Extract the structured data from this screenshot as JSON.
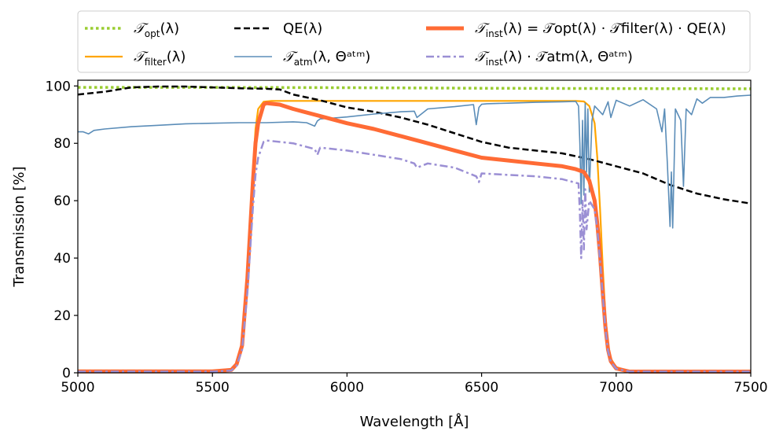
{
  "chart_data": {
    "type": "line",
    "title": "",
    "xlabel": "Wavelength [Å]",
    "ylabel": "Transmission [%]",
    "xlim": [
      5000,
      7500
    ],
    "ylim": [
      0,
      102
    ],
    "xticks": [
      5000,
      5500,
      6000,
      6500,
      7000,
      7500
    ],
    "yticks": [
      0,
      20,
      40,
      60,
      80,
      100
    ],
    "xtick_labels": [
      "5000",
      "5500",
      "6000",
      "6500",
      "7000",
      "7500"
    ],
    "ytick_labels": [
      "0",
      "20",
      "40",
      "60",
      "80",
      "100"
    ],
    "grid": false,
    "legend": {
      "location": "top, outside plot",
      "columns": 3
    },
    "series": [
      {
        "name": "T_opt(λ)",
        "legend_main": "𝒯",
        "legend_sub": "opt",
        "legend_tail": "(λ)",
        "color": "#9acd32",
        "style": "dotted",
        "x": [
          5000,
          5500,
          6000,
          6500,
          7000,
          7500
        ],
        "y": [
          99.5,
          99.5,
          99.4,
          99.2,
          99.1,
          99.0
        ]
      },
      {
        "name": "T_filter(λ)",
        "legend_main": "𝒯",
        "legend_sub": "filter",
        "legend_tail": "(λ)",
        "color": "#ffa500",
        "style": "solid",
        "x": [
          5000,
          5500,
          5570,
          5590,
          5610,
          5630,
          5650,
          5660,
          5670,
          5690,
          5720,
          5800,
          6000,
          6500,
          6850,
          6880,
          6900,
          6920,
          6930,
          6940,
          6950,
          6960,
          6970,
          6980,
          7000,
          7050,
          7500
        ],
        "y": [
          0.5,
          0.5,
          1.0,
          3.0,
          10.0,
          35.0,
          70.0,
          85.0,
          92.0,
          94.5,
          94.8,
          94.8,
          94.8,
          94.8,
          94.8,
          94.6,
          93.0,
          87.0,
          75.0,
          57.0,
          37.0,
          20.0,
          10.0,
          5.0,
          2.0,
          0.5,
          0.5
        ]
      },
      {
        "name": "QE(λ)",
        "legend_main": "QE",
        "legend_sub": "",
        "legend_tail": "(λ)",
        "color": "#000000",
        "style": "dashed",
        "x": [
          5000,
          5100,
          5200,
          5300,
          5400,
          5500,
          5600,
          5700,
          5750,
          5800,
          5900,
          6000,
          6100,
          6200,
          6300,
          6400,
          6500,
          6600,
          6700,
          6800,
          6900,
          7000,
          7100,
          7200,
          7300,
          7400,
          7500
        ],
        "y": [
          97.0,
          98.0,
          99.5,
          99.8,
          99.8,
          99.5,
          99.2,
          99.0,
          98.8,
          97.0,
          95.0,
          92.5,
          91.0,
          89.0,
          86.5,
          83.5,
          80.5,
          78.5,
          77.5,
          76.5,
          74.5,
          72.0,
          69.5,
          65.5,
          62.5,
          60.5,
          59.0
        ]
      },
      {
        "name": "T_atm(λ, Θ^atm)",
        "legend_main": "𝒯",
        "legend_sub": "atm",
        "legend_tail": "(λ, Θᵃᵗᵐ)",
        "color": "#5b8db8",
        "style": "solid",
        "x": [
          5000,
          5020,
          5040,
          5060,
          5100,
          5200,
          5300,
          5400,
          5500,
          5600,
          5700,
          5800,
          5850,
          5880,
          5890,
          5900,
          5950,
          6000,
          6100,
          6200,
          6250,
          6260,
          6300,
          6400,
          6470,
          6480,
          6490,
          6500,
          6520,
          6600,
          6700,
          6800,
          6850,
          6860,
          6865,
          6870,
          6875,
          6880,
          6885,
          6890,
          6895,
          6900,
          6910,
          6920,
          6950,
          6970,
          6980,
          7000,
          7050,
          7100,
          7150,
          7170,
          7180,
          7190,
          7200,
          7205,
          7210,
          7220,
          7240,
          7250,
          7260,
          7280,
          7300,
          7320,
          7350,
          7400,
          7450,
          7500
        ],
        "y": [
          84.0,
          84.0,
          83.3,
          84.5,
          85.0,
          85.8,
          86.3,
          86.8,
          87.0,
          87.2,
          87.2,
          87.5,
          87.2,
          86.0,
          87.8,
          88.5,
          88.8,
          89.2,
          90.2,
          91.0,
          91.2,
          89.0,
          92.0,
          92.8,
          93.5,
          86.5,
          92.5,
          93.6,
          93.8,
          94.0,
          94.3,
          94.5,
          94.6,
          93.0,
          80.0,
          59.0,
          88.0,
          62.0,
          94.0,
          70.0,
          92.0,
          63.0,
          88.0,
          93.0,
          90.0,
          94.5,
          89.0,
          95.0,
          93.0,
          95.2,
          92.0,
          84.0,
          92.0,
          73.0,
          51.0,
          70.0,
          50.5,
          92.0,
          88.0,
          65.0,
          92.0,
          90.0,
          95.5,
          94.0,
          96.0,
          96.0,
          96.5,
          96.8
        ]
      },
      {
        "name": "T_inst(λ) = T_opt(λ) · T_filter(λ) · QE(λ)",
        "legend_main": "𝒯",
        "legend_sub": "inst",
        "legend_tail": "(λ) = 𝒯opt(λ) · 𝒯filter(λ) · QE(λ)",
        "color": "#ff6b35",
        "style": "solid-thick",
        "x": [
          5000,
          5500,
          5570,
          5590,
          5610,
          5630,
          5650,
          5660,
          5670,
          5690,
          5700,
          5750,
          5800,
          5900,
          6000,
          6100,
          6200,
          6300,
          6400,
          6500,
          6600,
          6700,
          6800,
          6850,
          6880,
          6900,
          6920,
          6930,
          6940,
          6950,
          6960,
          6970,
          6980,
          7000,
          7050,
          7500
        ],
        "y": [
          0.5,
          0.5,
          1.0,
          3.0,
          9.5,
          33.0,
          66.0,
          80.0,
          87.0,
          93.5,
          94.0,
          93.5,
          92.0,
          89.5,
          87.0,
          85.0,
          82.5,
          80.0,
          77.5,
          75.0,
          74.0,
          73.0,
          72.0,
          71.0,
          70.0,
          67.0,
          60.0,
          52.0,
          41.0,
          28.0,
          16.0,
          8.0,
          4.0,
          1.5,
          0.4,
          0.4
        ]
      },
      {
        "name": "T_inst(λ) · T_atm(λ, Θ^atm)",
        "legend_main": "𝒯",
        "legend_sub": "inst",
        "legend_tail": "(λ) · 𝒯atm(λ, Θᵃᵗᵐ)",
        "color": "#9b8fd4",
        "style": "dashdot",
        "x": [
          5000,
          5500,
          5570,
          5590,
          5610,
          5630,
          5650,
          5660,
          5670,
          5690,
          5700,
          5800,
          5880,
          5890,
          5900,
          6000,
          6100,
          6200,
          6250,
          6260,
          6300,
          6400,
          6480,
          6490,
          6500,
          6600,
          6700,
          6800,
          6860,
          6865,
          6870,
          6875,
          6880,
          6885,
          6890,
          6900,
          6920,
          6930,
          6940,
          6950,
          6960,
          6970,
          6980,
          7000,
          7050,
          7500
        ],
        "y": [
          0.4,
          0.4,
          0.8,
          2.5,
          8.0,
          28.0,
          57.0,
          69.0,
          75.0,
          80.5,
          81.0,
          80.0,
          78.0,
          76.0,
          78.5,
          77.5,
          76.0,
          74.5,
          73.0,
          71.5,
          73.0,
          71.5,
          68.5,
          66.5,
          69.5,
          69.0,
          68.5,
          67.5,
          66.0,
          56.0,
          40.0,
          60.0,
          43.0,
          64.0,
          50.0,
          60.0,
          57.0,
          50.0,
          39.0,
          27.0,
          15.5,
          7.5,
          3.8,
          1.4,
          0.4,
          0.4
        ]
      }
    ]
  }
}
